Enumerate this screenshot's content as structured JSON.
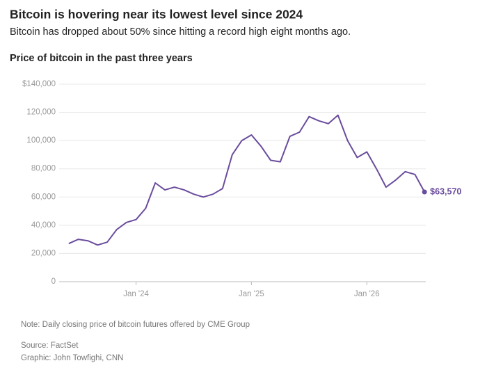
{
  "chart_data": {
    "type": "line",
    "title": "Bitcoin is hovering near its lowest level since 2024",
    "subtitle": "Bitcoin has dropped about 50% since hitting a record high eight months ago.",
    "chart_title": "Price of bitcoin in the past three years",
    "note": "Note: Daily closing price of bitcoin futures offered by CME Group",
    "source": "Source: FactSet",
    "credit": "Graphic: John Towfighi, CNN",
    "x": [
      "2023-06",
      "2023-07",
      "2023-08",
      "2023-09",
      "2023-10",
      "2023-11",
      "2023-12",
      "2024-01",
      "2024-02",
      "2024-03",
      "2024-04",
      "2024-05",
      "2024-06",
      "2024-07",
      "2024-08",
      "2024-09",
      "2024-10",
      "2024-11",
      "2024-12",
      "2025-01",
      "2025-02",
      "2025-03",
      "2025-04",
      "2025-05",
      "2025-06",
      "2025-07",
      "2025-08",
      "2025-09",
      "2025-10",
      "2025-11",
      "2025-12",
      "2026-01",
      "2026-02",
      "2026-03",
      "2026-04",
      "2026-05",
      "2026-06",
      "2026-07"
    ],
    "series": [
      {
        "name": "Price of bitcoin",
        "color": "#6a4c9c",
        "values": [
          27000,
          30000,
          29000,
          26000,
          28000,
          37000,
          42000,
          44000,
          52000,
          70000,
          65000,
          67000,
          65000,
          62000,
          60000,
          62000,
          66000,
          90000,
          100000,
          104000,
          96000,
          86000,
          85000,
          103000,
          106000,
          117000,
          114000,
          112000,
          118000,
          100000,
          88000,
          92000,
          80000,
          67000,
          72000,
          78000,
          76000,
          63570
        ],
        "value_labels": [
          null,
          null,
          null,
          null,
          null,
          null,
          null,
          null,
          null,
          null,
          null,
          null,
          null,
          null,
          null,
          null,
          null,
          null,
          null,
          null,
          null,
          null,
          null,
          null,
          null,
          null,
          null,
          null,
          null,
          null,
          null,
          null,
          null,
          null,
          null,
          null,
          null,
          "$63,570"
        ]
      }
    ],
    "xlim": [
      "2023-05",
      "2026-08"
    ],
    "xticks": [
      {
        "value": "2024-01",
        "label": "Jan '24"
      },
      {
        "value": "2025-01",
        "label": "Jan '25"
      },
      {
        "value": "2026-01",
        "label": "Jan '26"
      }
    ],
    "ylim": [
      0,
      140000
    ],
    "yticks": [
      {
        "value": 0,
        "label": "0"
      },
      {
        "value": 20000,
        "label": "20,000"
      },
      {
        "value": 40000,
        "label": "40,000"
      },
      {
        "value": 60000,
        "label": "60,000"
      },
      {
        "value": 80000,
        "label": "80,000"
      },
      {
        "value": 100000,
        "label": "100,000"
      },
      {
        "value": 120000,
        "label": "120,000"
      },
      {
        "value": 140000,
        "label": "$140,000"
      }
    ],
    "grid": true
  }
}
